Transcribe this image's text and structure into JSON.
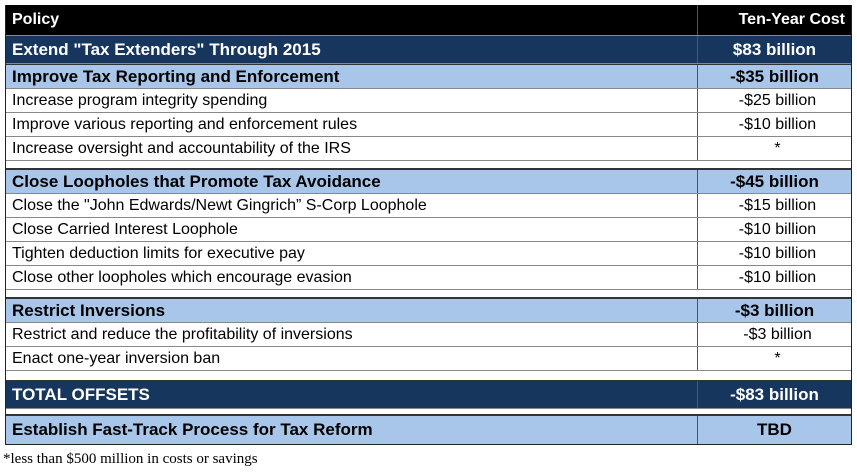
{
  "header": {
    "policy": "Policy",
    "cost": "Ten-Year Cost"
  },
  "extenders": {
    "policy": "Extend \"Tax Extenders\" Through 2015",
    "cost": "$83 billion"
  },
  "sections": [
    {
      "policy": "Improve Tax Reporting and Enforcement",
      "cost": "-$35 billion",
      "items": [
        {
          "policy": "Increase program integrity spending",
          "cost": "-$25 billion"
        },
        {
          "policy": "Improve various reporting and enforcement rules",
          "cost": "-$10 billion"
        },
        {
          "policy": "Increase oversight and accountability of the IRS",
          "cost": "*"
        }
      ]
    },
    {
      "policy": "Close Loopholes that Promote Tax Avoidance",
      "cost": "-$45 billion",
      "items": [
        {
          "policy": "Close the \"John Edwards/Newt Gingrich” S-Corp Loophole",
          "cost": "-$15 billion"
        },
        {
          "policy": "Close Carried Interest Loophole",
          "cost": "-$10 billion"
        },
        {
          "policy": "Tighten deduction limits for executive pay",
          "cost": "-$10 billion"
        },
        {
          "policy": "Close other loopholes which encourage evasion",
          "cost": "-$10 billion"
        }
      ]
    },
    {
      "policy": "Restrict Inversions",
      "cost": "-$3 billion",
      "items": [
        {
          "policy": "Restrict and reduce the profitability of inversions",
          "cost": "-$3 billion"
        },
        {
          "policy": "Enact one-year inversion ban",
          "cost": "*"
        }
      ]
    }
  ],
  "total": {
    "policy": "TOTAL OFFSETS",
    "cost": "-$83 billion"
  },
  "fast_track": {
    "policy": "Establish Fast-Track Process for Tax Reform",
    "cost": "TBD"
  },
  "footnote": "*less than $500 million in costs or savings"
}
